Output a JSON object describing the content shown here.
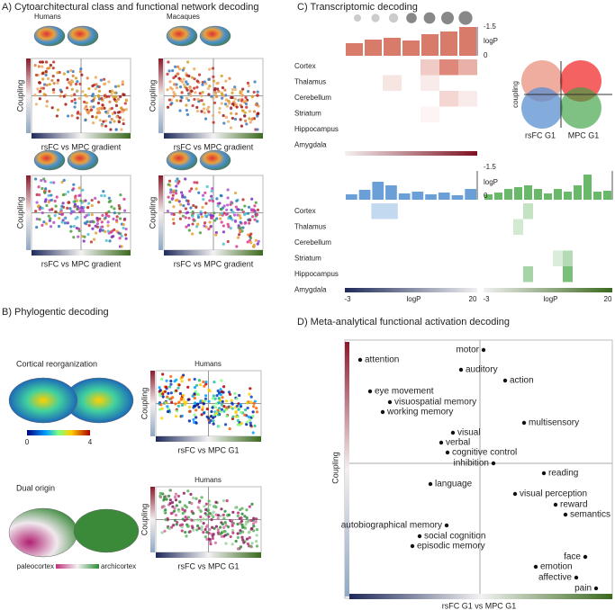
{
  "panel_a": {
    "title": "A) Cytoarchitectural class and functional network decoding",
    "species": [
      "Humans",
      "Macaques"
    ],
    "y_label": "Coupling",
    "x_label": "rsFC vs MPC gradient"
  },
  "panel_b": {
    "title": "B) Phylogentic decoding",
    "reorganization": {
      "title": "Cortical reorganization",
      "scale_min": 0,
      "scale_max": 4
    },
    "dual_origin": {
      "title": "Dual origin",
      "left": "paleocortex",
      "right": "archicortex"
    },
    "species": "Humans",
    "y_label": "Coupling",
    "x_label": "rsFC vs MPC G1"
  },
  "panel_c": {
    "title": "C) Transcriptomic decoding",
    "bar_axis": {
      "top": -1.5,
      "label": "logP",
      "bottom": 0
    },
    "regions": [
      "Cortex",
      "Thalamus",
      "Cerebellum",
      "Striatum",
      "Hippocampus",
      "Amygdala"
    ],
    "venn": {
      "y_label": "coupling",
      "left": "rsFC G1",
      "right": "MPC G1"
    },
    "scale": {
      "min": -3,
      "label": "logP",
      "max": 20
    }
  },
  "panel_d": {
    "title": "D) Meta-analytical functional activation decoding",
    "y_label": "Coupling",
    "x_label": "rsFC G1 vs MPC G1",
    "terms": [
      "attention",
      "motor",
      "auditory",
      "action",
      "eye movement",
      "visuospatial memory",
      "working memory",
      "multisensory",
      "visual",
      "verbal",
      "cognitive control",
      "inhibition",
      "reading",
      "language",
      "visual perception",
      "reward",
      "semantics",
      "autobiographical memory",
      "social cognition",
      "episodic memory",
      "face",
      "emotion",
      "affective",
      "pain"
    ]
  }
}
